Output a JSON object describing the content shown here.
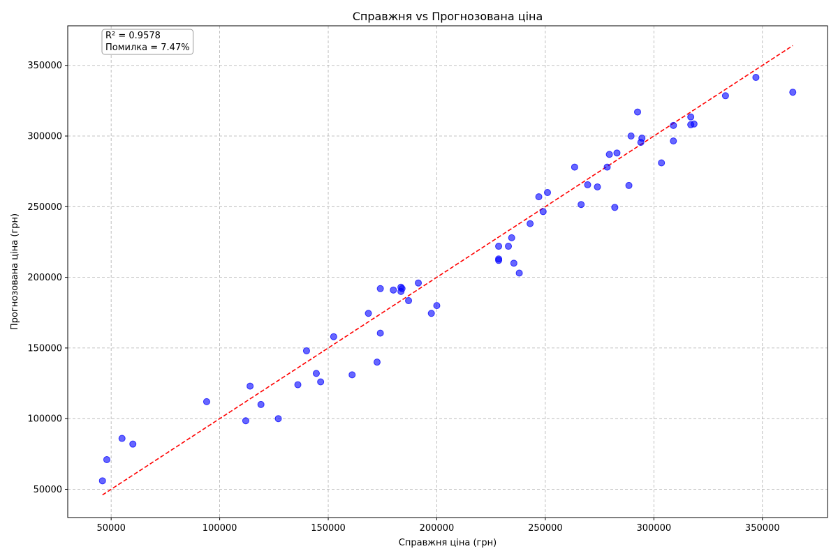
{
  "chart_data": {
    "type": "scatter",
    "title": "Справжня vs Прогнозована ціна",
    "xlabel": "Справжня ціна (грн)",
    "ylabel": "Прогнозована ціна (грн)",
    "xlim": [
      30000,
      380000
    ],
    "ylim": [
      30000,
      378000
    ],
    "xticks": [
      50000,
      100000,
      150000,
      200000,
      250000,
      300000,
      350000
    ],
    "yticks": [
      50000,
      100000,
      150000,
      200000,
      250000,
      300000,
      350000
    ],
    "grid": true,
    "annotation": [
      "R² = 0.9578",
      "Помилка = 7.47%"
    ],
    "point_color": "#0000ff",
    "line_color": "#ff0000",
    "reference_line": {
      "x": [
        46000,
        364000
      ],
      "y": [
        46000,
        364000
      ],
      "style": "dashed"
    },
    "points": [
      [
        46000,
        56000
      ],
      [
        48000,
        71000
      ],
      [
        55000,
        86000
      ],
      [
        60000,
        82000
      ],
      [
        94000,
        112000
      ],
      [
        112000,
        98500
      ],
      [
        114000,
        123000
      ],
      [
        119000,
        110000
      ],
      [
        127000,
        100000
      ],
      [
        136000,
        124000
      ],
      [
        140000,
        148000
      ],
      [
        144500,
        132000
      ],
      [
        146500,
        126000
      ],
      [
        152500,
        158000
      ],
      [
        161000,
        131000
      ],
      [
        168500,
        174500
      ],
      [
        172500,
        140000
      ],
      [
        174000,
        192000
      ],
      [
        174000,
        160500
      ],
      [
        180000,
        191000
      ],
      [
        183500,
        193000
      ],
      [
        183500,
        190000
      ],
      [
        184000,
        192000
      ],
      [
        187000,
        183500
      ],
      [
        191500,
        196000
      ],
      [
        197500,
        174500
      ],
      [
        200000,
        180000
      ],
      [
        228500,
        222000
      ],
      [
        228500,
        213000
      ],
      [
        228500,
        212000
      ],
      [
        233000,
        222000
      ],
      [
        234500,
        228000
      ],
      [
        235500,
        210000
      ],
      [
        238000,
        203000
      ],
      [
        243000,
        238000
      ],
      [
        247000,
        257000
      ],
      [
        249000,
        246500
      ],
      [
        251000,
        260000
      ],
      [
        263500,
        278000
      ],
      [
        266500,
        251500
      ],
      [
        269500,
        265500
      ],
      [
        274000,
        264000
      ],
      [
        278500,
        278000
      ],
      [
        279500,
        287000
      ],
      [
        282000,
        249500
      ],
      [
        283000,
        288000
      ],
      [
        288500,
        265000
      ],
      [
        289500,
        300000
      ],
      [
        292500,
        317000
      ],
      [
        294000,
        295500
      ],
      [
        294500,
        298500
      ],
      [
        303500,
        281000
      ],
      [
        309000,
        307500
      ],
      [
        309000,
        296500
      ],
      [
        317000,
        313500
      ],
      [
        317000,
        308000
      ],
      [
        318500,
        308500
      ],
      [
        333000,
        328500
      ],
      [
        347000,
        341500
      ],
      [
        364000,
        331000
      ]
    ]
  }
}
